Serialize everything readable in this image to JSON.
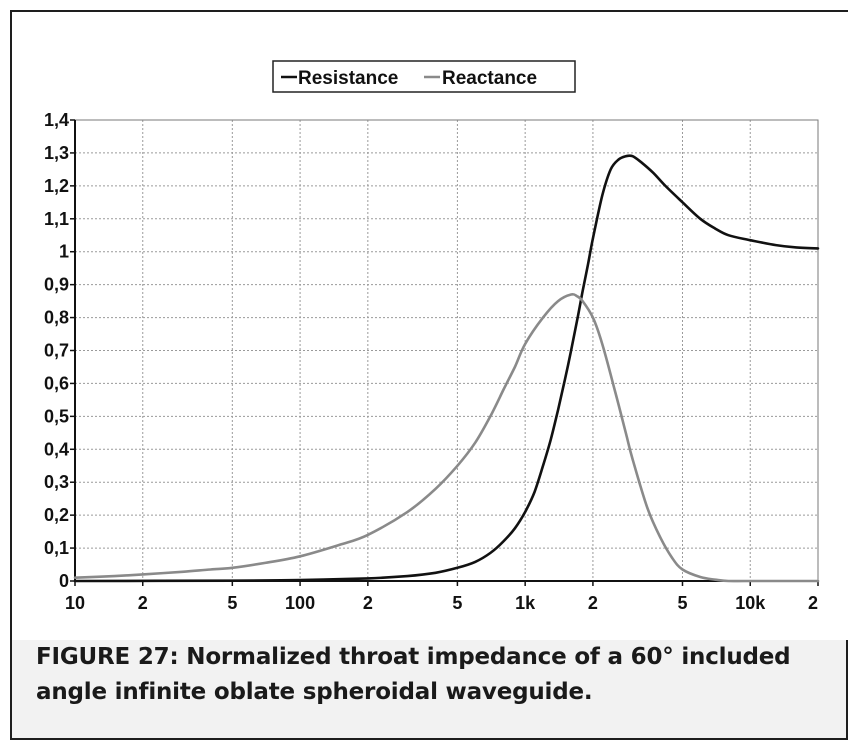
{
  "caption": "FIGURE 27: Normalized throat impedance of a 60° included angle infinite oblate spheroidal waveguide.",
  "colors": {
    "resistance": "#111111",
    "reactance": "#8a8a8a",
    "grid": "#9a9a9a",
    "frame": "#1e1e1e"
  },
  "chart_data": {
    "type": "line",
    "title": "",
    "xlabel": "",
    "ylabel": "",
    "x_scale": "log",
    "xlim": [
      10,
      20000
    ],
    "ylim": [
      0,
      1.4
    ],
    "grid": true,
    "legend_position": "top-center",
    "x_ticks": [
      {
        "value": 10,
        "label": "10"
      },
      {
        "value": 20,
        "label": "2"
      },
      {
        "value": 50,
        "label": "5"
      },
      {
        "value": 100,
        "label": "100"
      },
      {
        "value": 200,
        "label": "2"
      },
      {
        "value": 500,
        "label": "5"
      },
      {
        "value": 1000,
        "label": "1k"
      },
      {
        "value": 2000,
        "label": "2"
      },
      {
        "value": 5000,
        "label": "5"
      },
      {
        "value": 10000,
        "label": "10k"
      },
      {
        "value": 20000,
        "label": "2"
      }
    ],
    "y_ticks": [
      {
        "value": 0,
        "label": "0"
      },
      {
        "value": 0.1,
        "label": "0,1"
      },
      {
        "value": 0.2,
        "label": "0,2"
      },
      {
        "value": 0.3,
        "label": "0,3"
      },
      {
        "value": 0.4,
        "label": "0,4"
      },
      {
        "value": 0.5,
        "label": "0,5"
      },
      {
        "value": 0.6,
        "label": "0,6"
      },
      {
        "value": 0.7,
        "label": "0,7"
      },
      {
        "value": 0.8,
        "label": "0,8"
      },
      {
        "value": 0.9,
        "label": "0,9"
      },
      {
        "value": 1.0,
        "label": "1"
      },
      {
        "value": 1.1,
        "label": "1,1"
      },
      {
        "value": 1.2,
        "label": "1,2"
      },
      {
        "value": 1.3,
        "label": "1,3"
      },
      {
        "value": 1.4,
        "label": "1,4"
      }
    ],
    "series": [
      {
        "name": "Resistance",
        "color": "#111111",
        "points": [
          [
            10,
            0.0
          ],
          [
            50,
            0.001
          ],
          [
            100,
            0.003
          ],
          [
            200,
            0.008
          ],
          [
            300,
            0.015
          ],
          [
            400,
            0.025
          ],
          [
            500,
            0.04
          ],
          [
            600,
            0.058
          ],
          [
            700,
            0.085
          ],
          [
            800,
            0.12
          ],
          [
            900,
            0.16
          ],
          [
            1000,
            0.21
          ],
          [
            1100,
            0.27
          ],
          [
            1200,
            0.35
          ],
          [
            1300,
            0.43
          ],
          [
            1400,
            0.52
          ],
          [
            1500,
            0.61
          ],
          [
            1600,
            0.7
          ],
          [
            1700,
            0.79
          ],
          [
            1800,
            0.88
          ],
          [
            1900,
            0.96
          ],
          [
            2000,
            1.04
          ],
          [
            2200,
            1.17
          ],
          [
            2400,
            1.25
          ],
          [
            2600,
            1.28
          ],
          [
            2800,
            1.29
          ],
          [
            3000,
            1.29
          ],
          [
            3300,
            1.27
          ],
          [
            3700,
            1.24
          ],
          [
            4200,
            1.2
          ],
          [
            5000,
            1.15
          ],
          [
            6000,
            1.1
          ],
          [
            7000,
            1.07
          ],
          [
            8000,
            1.05
          ],
          [
            10000,
            1.035
          ],
          [
            13000,
            1.02
          ],
          [
            16000,
            1.013
          ],
          [
            20000,
            1.01
          ]
        ]
      },
      {
        "name": "Reactance",
        "color": "#8a8a8a",
        "points": [
          [
            10,
            0.01
          ],
          [
            15,
            0.015
          ],
          [
            20,
            0.02
          ],
          [
            30,
            0.028
          ],
          [
            40,
            0.035
          ],
          [
            50,
            0.04
          ],
          [
            70,
            0.055
          ],
          [
            100,
            0.075
          ],
          [
            150,
            0.11
          ],
          [
            200,
            0.14
          ],
          [
            300,
            0.21
          ],
          [
            400,
            0.28
          ],
          [
            500,
            0.35
          ],
          [
            600,
            0.42
          ],
          [
            700,
            0.5
          ],
          [
            800,
            0.58
          ],
          [
            900,
            0.65
          ],
          [
            1000,
            0.72
          ],
          [
            1200,
            0.8
          ],
          [
            1400,
            0.85
          ],
          [
            1600,
            0.87
          ],
          [
            1700,
            0.865
          ],
          [
            1800,
            0.85
          ],
          [
            2000,
            0.8
          ],
          [
            2200,
            0.72
          ],
          [
            2500,
            0.58
          ],
          [
            2800,
            0.45
          ],
          [
            3000,
            0.37
          ],
          [
            3500,
            0.22
          ],
          [
            4000,
            0.13
          ],
          [
            4500,
            0.07
          ],
          [
            5000,
            0.035
          ],
          [
            6000,
            0.012
          ],
          [
            7000,
            0.004
          ],
          [
            8000,
            0.0
          ],
          [
            10000,
            0.0
          ],
          [
            20000,
            0.0
          ]
        ]
      }
    ]
  }
}
